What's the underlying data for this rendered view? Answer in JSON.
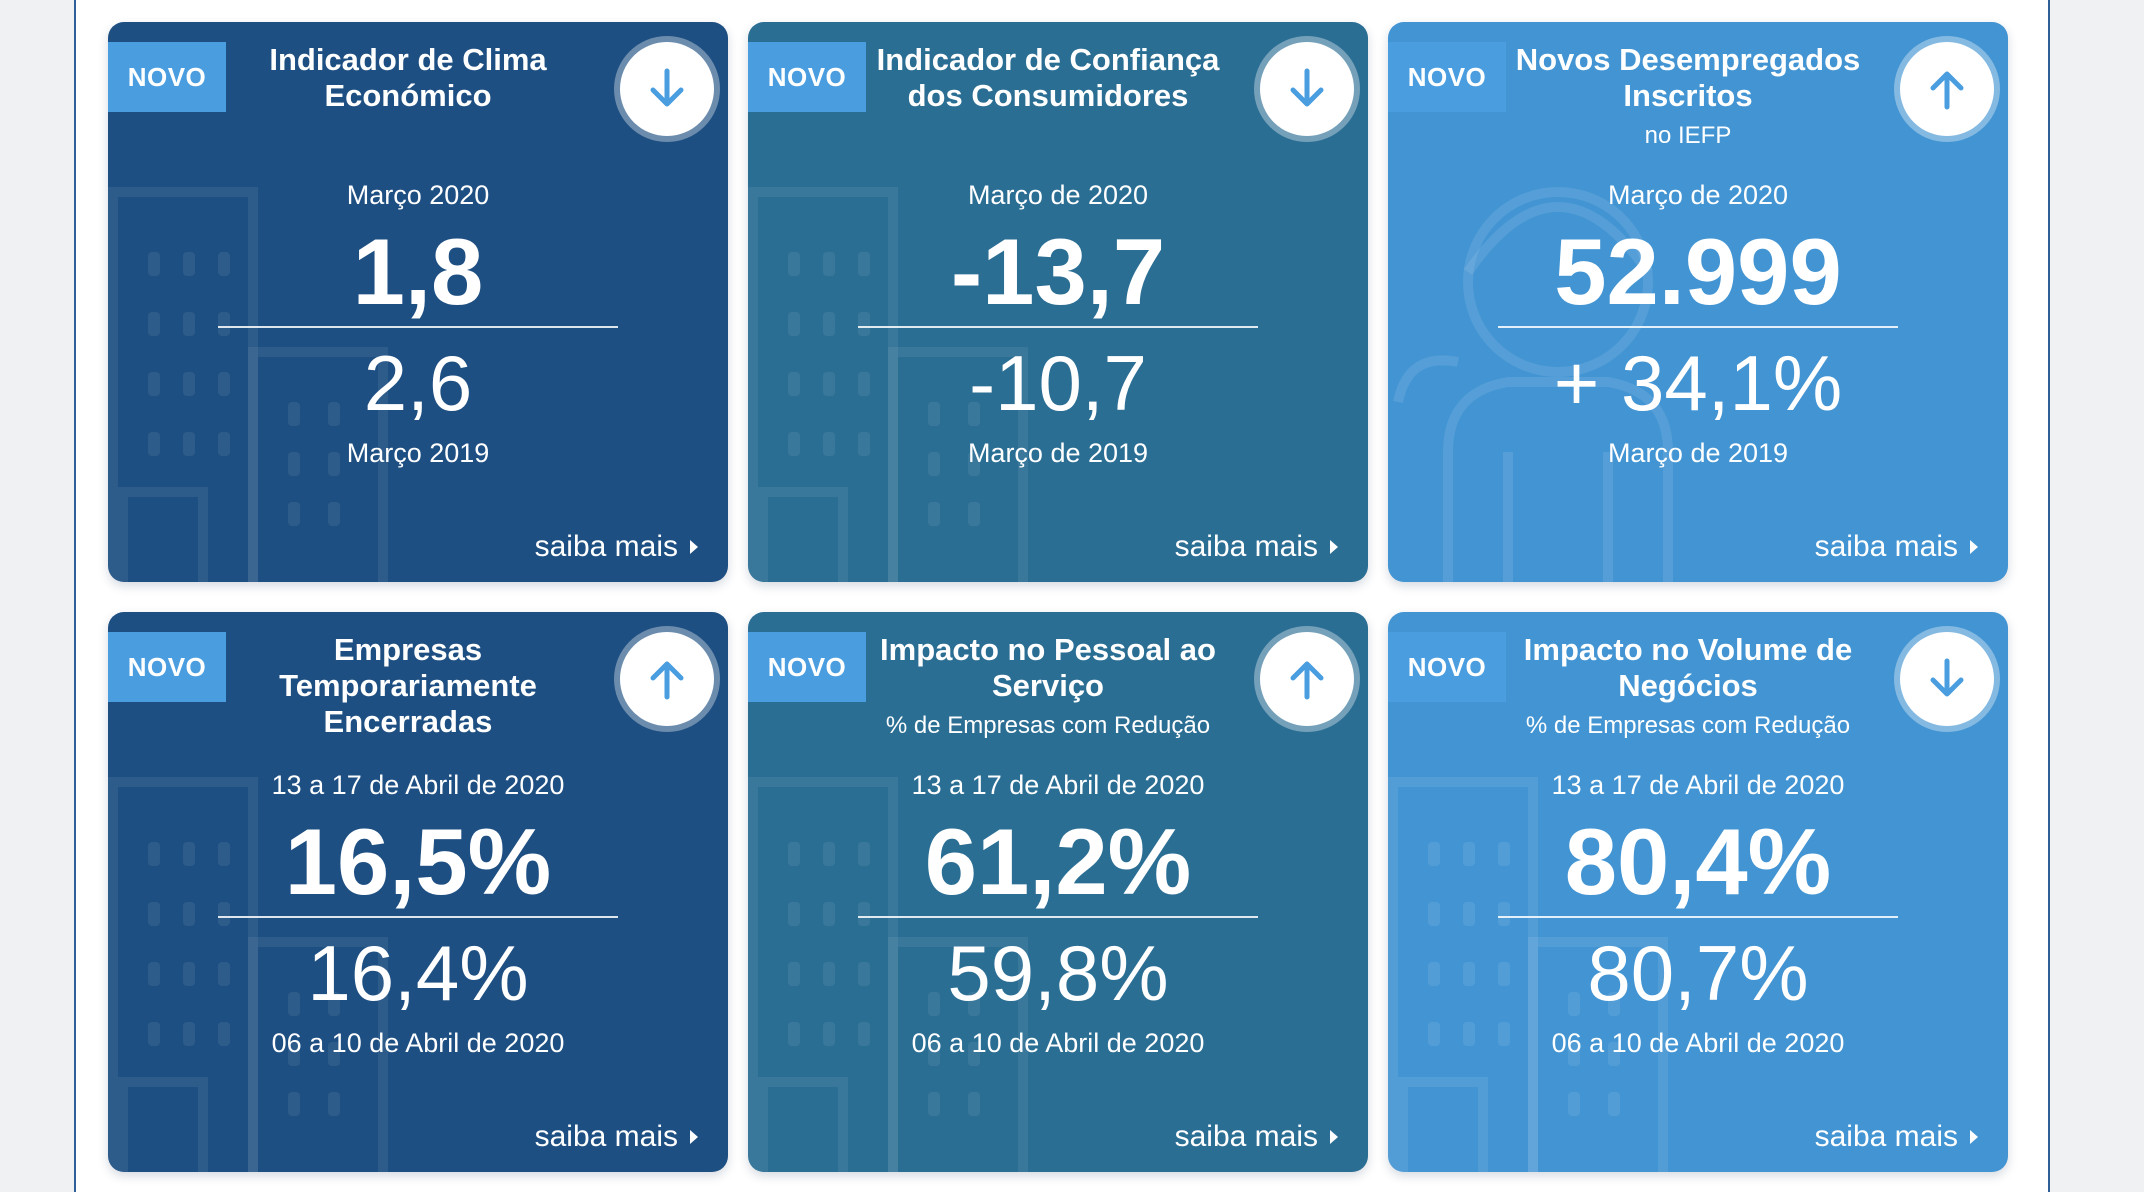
{
  "colors": {
    "card_dark": "#1e4f82",
    "card_mid": "#2b6e94",
    "card_light": "#4294d3",
    "badge": "#4a9ee0",
    "arrow": "#4a9ee0"
  },
  "cards": [
    {
      "badge": "NOVO",
      "title_line1": "Indicador de Clima",
      "title_line2": "Económico",
      "title_line3": "",
      "subtitle": "",
      "arrow_icon": "arrow-down-icon",
      "current_period": "Março 2020",
      "current_value": "1,8",
      "previous_value": "2,6",
      "previous_period": "Março 2019",
      "link": "saiba mais"
    },
    {
      "badge": "NOVO",
      "title_line1": "Indicador de Confiança",
      "title_line2": "dos Consumidores",
      "title_line3": "",
      "subtitle": "",
      "arrow_icon": "arrow-down-icon",
      "current_period": "Março de 2020",
      "current_value": "-13,7",
      "previous_value": "-10,7",
      "previous_period": "Março de 2019",
      "link": "saiba mais"
    },
    {
      "badge": "NOVO",
      "title_line1": "Novos Desempregados",
      "title_line2": "Inscritos",
      "title_line3": "",
      "subtitle": "no IEFP",
      "arrow_icon": "arrow-up-icon",
      "current_period": "Março de 2020",
      "current_value": "52.999",
      "previous_value": "+ 34,1%",
      "previous_period": "Março de 2019",
      "link": "saiba mais"
    },
    {
      "badge": "NOVO",
      "title_line1": "Empresas",
      "title_line2": "Temporariamente",
      "title_line3": "Encerradas",
      "subtitle": "",
      "arrow_icon": "arrow-up-icon",
      "current_period": "13 a 17 de Abril de 2020",
      "current_value": "16,5%",
      "previous_value": "16,4%",
      "previous_period": "06 a 10 de Abril de 2020",
      "link": "saiba mais"
    },
    {
      "badge": "NOVO",
      "title_line1": "Impacto no Pessoal ao",
      "title_line2": "Serviço",
      "title_line3": "",
      "subtitle": "% de Empresas com Redução",
      "arrow_icon": "arrow-up-icon",
      "current_period": "13 a 17 de Abril de 2020",
      "current_value": "61,2%",
      "previous_value": "59,8%",
      "previous_period": "06 a 10 de Abril de 2020",
      "link": "saiba mais"
    },
    {
      "badge": "NOVO",
      "title_line1": "Impacto no Volume de",
      "title_line2": "Negócios",
      "title_line3": "",
      "subtitle": "% de Empresas com Redução",
      "arrow_icon": "arrow-down-icon",
      "current_period": "13 a 17 de Abril de 2020",
      "current_value": "80,4%",
      "previous_value": "80,7%",
      "previous_period": "06 a 10 de Abril de 2020",
      "link": "saiba mais"
    }
  ]
}
